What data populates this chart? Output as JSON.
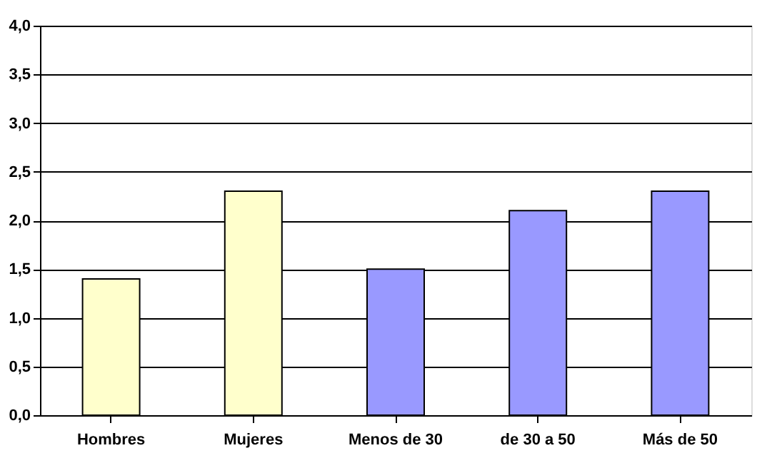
{
  "chart_data": {
    "type": "bar",
    "categories": [
      "Hombres",
      "Mujeres",
      "Menos de 30",
      "de 30 a 50",
      "Más de 50"
    ],
    "values": [
      1.4,
      2.3,
      1.5,
      2.1,
      2.3
    ],
    "colors": [
      "#ffffcc",
      "#ffffcc",
      "#9999ff",
      "#9999ff",
      "#9999ff"
    ],
    "ylim": [
      0,
      4
    ],
    "yticks": [
      {
        "value": 0,
        "label": "0,0"
      },
      {
        "value": 0.5,
        "label": "0,5"
      },
      {
        "value": 1,
        "label": "1,0"
      },
      {
        "value": 1.5,
        "label": "1,5"
      },
      {
        "value": 2,
        "label": "2,0"
      },
      {
        "value": 2.5,
        "label": "2,5"
      },
      {
        "value": 3,
        "label": "3,0"
      },
      {
        "value": 3.5,
        "label": "3,5"
      },
      {
        "value": 4,
        "label": "4,0"
      }
    ],
    "grid": "y"
  }
}
